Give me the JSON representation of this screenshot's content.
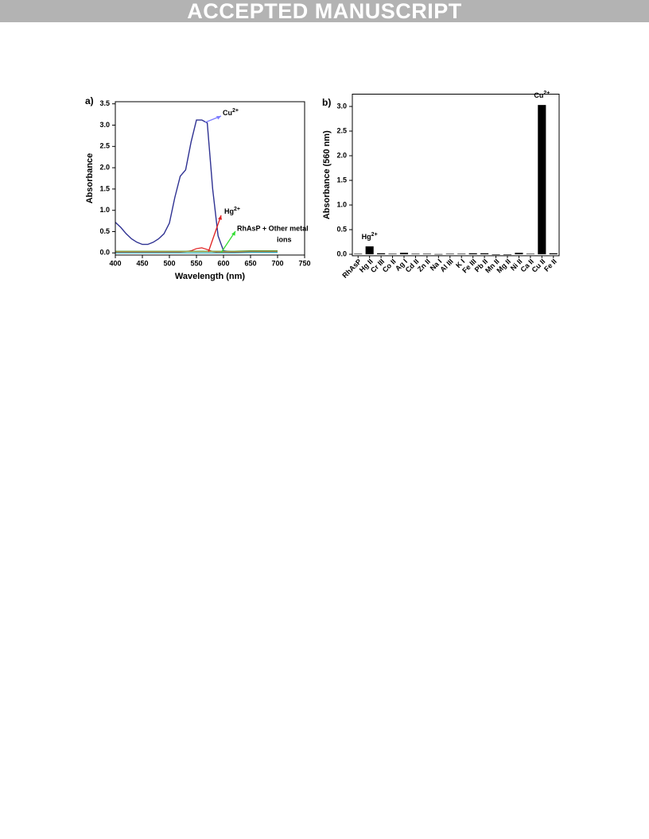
{
  "header": {
    "banner": "ACCEPTED MANUSCRIPT"
  },
  "chart_data": [
    {
      "type": "line",
      "panel_label": "a)",
      "x_label": "Wavelength (nm)",
      "y_label": "Absorbance",
      "x": [
        400,
        410,
        420,
        430,
        440,
        450,
        460,
        470,
        480,
        490,
        500,
        510,
        520,
        530,
        540,
        550,
        560,
        570,
        580,
        590,
        600,
        620,
        650,
        700
      ],
      "xlim": [
        400,
        750
      ],
      "xticks": [
        400,
        450,
        500,
        550,
        600,
        650,
        700,
        750
      ],
      "ylim": [
        -0.05,
        3.55
      ],
      "yticks": [
        {
          "value": 0,
          "label": "0.0"
        },
        {
          "value": 0.5,
          "label": "0.5"
        },
        {
          "value": 1,
          "label": "1.0"
        },
        {
          "value": 1.5,
          "label": "1.5"
        },
        {
          "value": 2,
          "label": "2.0"
        },
        {
          "value": 2.5,
          "label": "2.5"
        },
        {
          "value": 3,
          "label": "3.0"
        },
        {
          "value": 3.5,
          "label": "3.5"
        }
      ],
      "series": [
        {
          "color": "#2e3192",
          "values": [
            0.72,
            0.6,
            0.45,
            0.33,
            0.25,
            0.2,
            0.2,
            0.25,
            0.33,
            0.45,
            0.7,
            1.3,
            1.8,
            1.95,
            2.6,
            3.12,
            3.12,
            3.05,
            1.5,
            0.4,
            0.05,
            0.02,
            0.02,
            0.03
          ]
        },
        {
          "color": "#e02020",
          "values": [
            0.02,
            0.02,
            0.02,
            0.02,
            0.02,
            0.02,
            0.02,
            0.02,
            0.02,
            0.02,
            0.02,
            0.02,
            0.02,
            0.03,
            0.05,
            0.1,
            0.12,
            0.08,
            0.03,
            0.01,
            0.01,
            0.01,
            0.02,
            0.03
          ]
        },
        {
          "color": "#3c9a3c",
          "values": [
            0.04,
            0.04,
            0.04,
            0.04,
            0.04,
            0.04,
            0.04,
            0.04,
            0.04,
            0.04,
            0.04,
            0.04,
            0.04,
            0.04,
            0.04,
            0.04,
            0.04,
            0.04,
            0.04,
            0.04,
            0.04,
            0.04,
            0.05,
            0.05
          ]
        },
        {
          "color": "#a0a040",
          "values": [
            0.03,
            0.03,
            0.03,
            0.03,
            0.03,
            0.03,
            0.03,
            0.03,
            0.03,
            0.03,
            0.03,
            0.03,
            0.03,
            0.03,
            0.03,
            0.03,
            0.03,
            0.03,
            0.03,
            0.03,
            0.03,
            0.03,
            0.04,
            0.04
          ]
        },
        {
          "color": "#20b0c0",
          "values": [
            0.0,
            0.0,
            0.0,
            0.0,
            0.0,
            0.0,
            0.0,
            0.0,
            0.0,
            0.0,
            0.0,
            0.0,
            0.0,
            0.0,
            0.0,
            0.0,
            0.0,
            0.0,
            0.0,
            0.0,
            0.0,
            0.0,
            0.01,
            0.01
          ]
        }
      ],
      "annotations": [
        {
          "base": "Cu",
          "sup": "2+",
          "color": "#7b7bff"
        },
        {
          "base": "Hg",
          "sup": "2+",
          "color": "#e02020"
        },
        {
          "lines": [
            "RhAsP + Other metal",
            "ions"
          ],
          "color": "#33dd33"
        }
      ]
    },
    {
      "type": "bar",
      "panel_label": "b)",
      "y_label": "Absorbance (560 nm)",
      "categories": [
        "RhAsP",
        "Hg II",
        "Cr III",
        "Co II",
        "Ag I",
        "Cd II",
        "Zn II",
        "Na I",
        "Al III",
        "K I",
        "Fe III",
        "Pb II",
        "Mn II",
        "Mg II",
        "Ni II",
        "Ca II",
        "Cu II",
        "Fe II"
      ],
      "values": [
        0.01,
        0.16,
        0.02,
        0.01,
        0.03,
        0.01,
        0.01,
        0.005,
        0.01,
        0.01,
        0.02,
        0.02,
        0.0,
        0.0,
        0.03,
        0.01,
        3.03,
        0.02
      ],
      "color": "#000000",
      "ylim": [
        -0.03,
        3.25
      ],
      "yticks": [
        {
          "value": 0,
          "label": "0.0"
        },
        {
          "value": 0.5,
          "label": "0.5"
        },
        {
          "value": 1,
          "label": "1.0"
        },
        {
          "value": 1.5,
          "label": "1.5"
        },
        {
          "value": 2,
          "label": "2.0"
        },
        {
          "value": 2.5,
          "label": "2.5"
        },
        {
          "value": 3,
          "label": "3.0"
        }
      ],
      "annotations": [
        {
          "base": "Hg",
          "sup": "2+",
          "category": 1
        },
        {
          "base": "Cu",
          "sup": "2+",
          "category": 16
        }
      ]
    }
  ]
}
